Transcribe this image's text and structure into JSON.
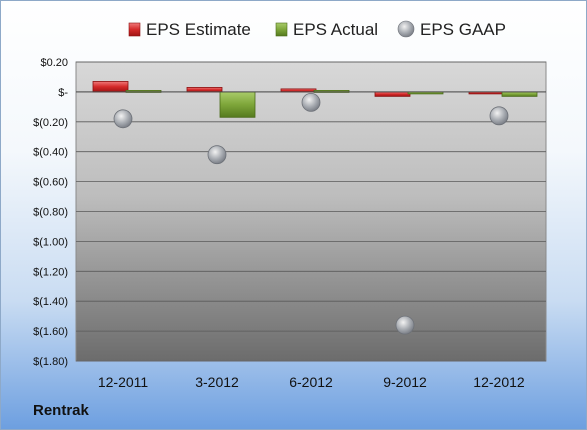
{
  "company": "Rentrak",
  "colors": {
    "estimate": "#d42a2a",
    "actual": "#6f9a2e",
    "gaap": "#9aa0a8"
  },
  "chart_data": {
    "type": "bar",
    "categories": [
      "12-2011",
      "3-2012",
      "6-2012",
      "9-2012",
      "12-2012"
    ],
    "series": [
      {
        "name": "EPS Estimate",
        "kind": "bar",
        "values": [
          0.07,
          0.03,
          0.02,
          -0.03,
          -0.01
        ]
      },
      {
        "name": "EPS Actual",
        "kind": "bar",
        "values": [
          0.01,
          -0.17,
          0.01,
          -0.01,
          -0.03
        ]
      },
      {
        "name": "EPS GAAP",
        "kind": "scatter",
        "values": [
          -0.18,
          -0.42,
          -0.07,
          -1.56,
          -0.16
        ]
      }
    ],
    "yticks": [
      {
        "value": 0.2,
        "label": "$0.20"
      },
      {
        "value": 0.0,
        "label": "$-"
      },
      {
        "value": -0.2,
        "label": "$(0.20)"
      },
      {
        "value": -0.4,
        "label": "$(0.40)"
      },
      {
        "value": -0.6,
        "label": "$(0.60)"
      },
      {
        "value": -0.8,
        "label": "$(0.80)"
      },
      {
        "value": -1.0,
        "label": "$(1.00)"
      },
      {
        "value": -1.2,
        "label": "$(1.20)"
      },
      {
        "value": -1.4,
        "label": "$(1.40)"
      },
      {
        "value": -1.6,
        "label": "$(1.60)"
      },
      {
        "value": -1.8,
        "label": "$(1.80)"
      }
    ],
    "ylim": [
      -1.8,
      0.2
    ],
    "grid": true,
    "legend": "top"
  }
}
